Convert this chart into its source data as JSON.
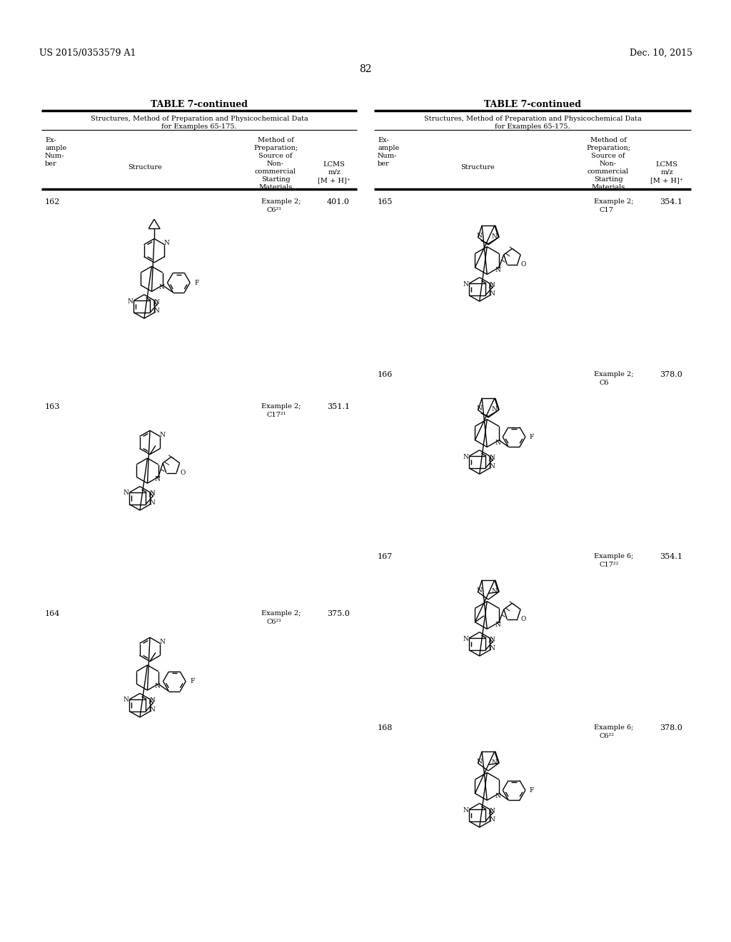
{
  "page_number": "82",
  "patent_number": "US 2015/0353579 A1",
  "patent_date": "Dec. 10, 2015",
  "table_title": "TABLE 7-continued",
  "table_subtitle_line1": "Structures, Method of Preparation and Physicochemical Data",
  "table_subtitle_line2": "for Examples 65-175.",
  "background_color": "#ffffff",
  "examples_left": [
    {
      "num": "162",
      "method": "Example 2;",
      "method2": "C6²¹",
      "lcms": "401.0"
    },
    {
      "num": "163",
      "method": "Example 2;",
      "method2": "C17²¹",
      "lcms": "351.1"
    },
    {
      "num": "164",
      "method": "Example 2;",
      "method2": "C6²¹",
      "lcms": "375.0"
    }
  ],
  "examples_right": [
    {
      "num": "165",
      "method": "Example 2;",
      "method2": "C17",
      "lcms": "354.1"
    },
    {
      "num": "166",
      "method": "Example 2;",
      "method2": "C6",
      "lcms": "378.0"
    },
    {
      "num": "167",
      "method": "Example 6;",
      "method2": "C17²²",
      "lcms": "354.1"
    },
    {
      "num": "168",
      "method": "Example 6;",
      "method2": "C6²²",
      "lcms": "378.0"
    }
  ]
}
